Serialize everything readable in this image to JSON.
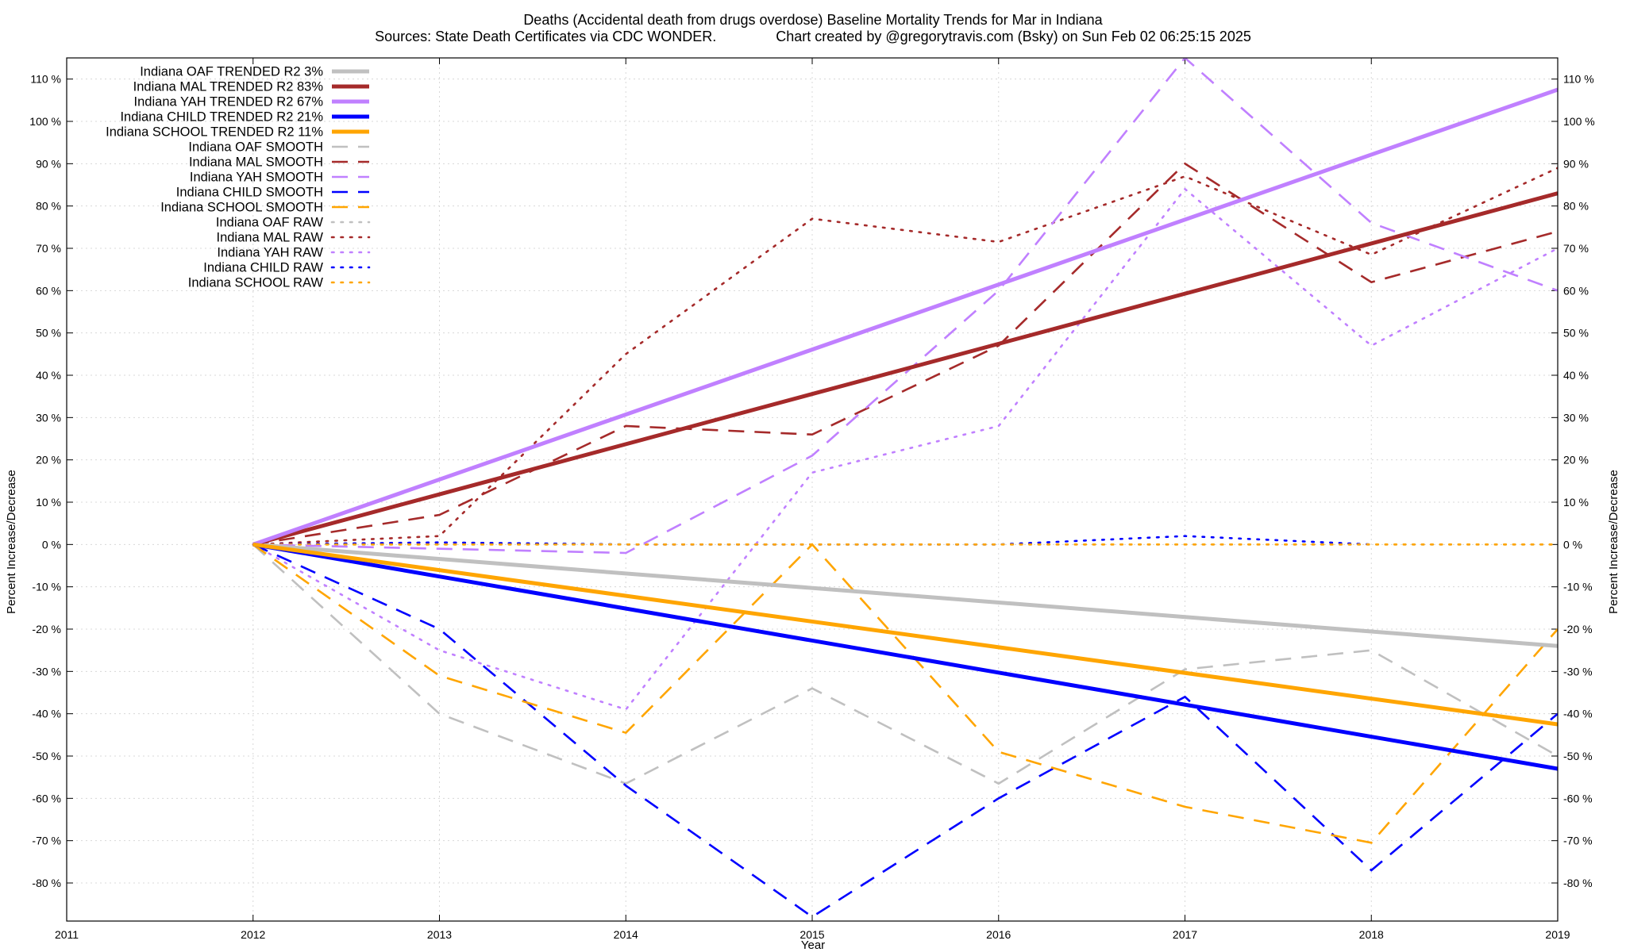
{
  "chart_data": {
    "type": "line",
    "title": "Deaths (Accidental death from drugs overdose)  Baseline Mortality Trends for Mar in Indiana",
    "subtitle": "Sources: State Death Certificates via CDC WONDER.               Chart created by @gregorytravis.com (Bsky) on Sun Feb 02 06:25:15 2025",
    "xlabel": "Year",
    "ylabel": "Percent Increase/Decrease",
    "ylabel_right": "Percent Increase/Decrease",
    "xlim": [
      2011,
      2019
    ],
    "ylim": [
      -89,
      115
    ],
    "x_ticks": [
      "2011",
      "2012",
      "2013",
      "2014",
      "2015",
      "2016",
      "2017",
      "2018",
      "2019"
    ],
    "y_ticks": [
      -80,
      -70,
      -60,
      -50,
      -40,
      -30,
      -20,
      -10,
      0,
      10,
      20,
      30,
      40,
      50,
      60,
      70,
      80,
      90,
      100,
      110
    ],
    "y_tick_labels": [
      "-80 %",
      "-70 %",
      "-60 %",
      "-50 %",
      "-40 %",
      "-30 %",
      "-20 %",
      "-10 %",
      "0 %",
      "10 %",
      "20 %",
      "30 %",
      "40 %",
      "50 %",
      "60 %",
      "70 %",
      "80 %",
      "90 %",
      "100 %",
      "110 %"
    ],
    "grid": true,
    "legend_position": "top-left",
    "series": [
      {
        "name": "Indiana OAF TRENDED R2  3%",
        "style": "solid",
        "color": "#c0c0c0",
        "x": [
          2012,
          2019
        ],
        "values": [
          0,
          -24
        ]
      },
      {
        "name": "Indiana MAL TRENDED R2  83%",
        "style": "solid",
        "color": "#a52a2a",
        "x": [
          2012,
          2019
        ],
        "values": [
          0,
          83
        ]
      },
      {
        "name": "Indiana YAH TRENDED R2  67%",
        "style": "solid",
        "color": "#c080ff",
        "x": [
          2012,
          2019
        ],
        "values": [
          0,
          107.5
        ]
      },
      {
        "name": "Indiana CHILD TRENDED R2  21%",
        "style": "solid",
        "color": "#0000ff",
        "x": [
          2012,
          2019
        ],
        "values": [
          0,
          -53
        ]
      },
      {
        "name": "Indiana SCHOOL TRENDED R2  11%",
        "style": "solid",
        "color": "#ffa500",
        "x": [
          2012,
          2019
        ],
        "values": [
          0,
          -42.5
        ]
      },
      {
        "name": "Indiana OAF SMOOTH",
        "style": "dash",
        "color": "#c0c0c0",
        "x": [
          2012,
          2013,
          2014,
          2015,
          2016,
          2017,
          2018,
          2019
        ],
        "values": [
          0,
          -40,
          -56.5,
          -34,
          -56.5,
          -29.5,
          -25,
          -50
        ]
      },
      {
        "name": "Indiana MAL SMOOTH",
        "style": "dash",
        "color": "#a52a2a",
        "x": [
          2012,
          2013,
          2014,
          2015,
          2016,
          2017,
          2018,
          2019
        ],
        "values": [
          0,
          7,
          28,
          26,
          47,
          90,
          62,
          74
        ]
      },
      {
        "name": "Indiana YAH SMOOTH",
        "style": "dash",
        "color": "#c080ff",
        "x": [
          2012,
          2013,
          2014,
          2015,
          2016,
          2017,
          2018,
          2019
        ],
        "values": [
          0,
          -1,
          -2,
          21,
          60,
          115,
          76,
          60
        ]
      },
      {
        "name": "Indiana CHILD SMOOTH",
        "style": "dash",
        "color": "#0000ff",
        "x": [
          2012,
          2013,
          2014,
          2015,
          2016,
          2017,
          2018,
          2019
        ],
        "values": [
          0,
          -20,
          -57,
          -88,
          -60,
          -36,
          -77,
          -40
        ]
      },
      {
        "name": "Indiana SCHOOL SMOOTH",
        "style": "dash",
        "color": "#ffa500",
        "x": [
          2012,
          2013,
          2014,
          2015,
          2016,
          2017,
          2018,
          2019
        ],
        "values": [
          0,
          -31,
          -44.5,
          0,
          -49,
          -62,
          -70.5,
          -20
        ]
      },
      {
        "name": "Indiana OAF RAW",
        "style": "dot",
        "color": "#c0c0c0",
        "x": [
          2012,
          2013,
          2014,
          2015,
          2016,
          2017,
          2018,
          2019
        ],
        "values": [
          0,
          0,
          0,
          0,
          0,
          0,
          0,
          0
        ]
      },
      {
        "name": "Indiana MAL RAW",
        "style": "dot",
        "color": "#a52a2a",
        "x": [
          2012,
          2013,
          2014,
          2015,
          2016,
          2017,
          2018,
          2019
        ],
        "values": [
          0,
          2,
          45,
          77,
          71.5,
          87,
          68.5,
          89
        ]
      },
      {
        "name": "Indiana YAH RAW",
        "style": "dot",
        "color": "#c080ff",
        "x": [
          2012,
          2013,
          2014,
          2015,
          2016,
          2017,
          2018,
          2019
        ],
        "values": [
          0,
          -25,
          -39,
          17,
          28,
          84,
          47,
          70
        ]
      },
      {
        "name": "Indiana CHILD RAW",
        "style": "dot",
        "color": "#0000ff",
        "x": [
          2012,
          2013,
          2014,
          2015,
          2016,
          2017,
          2018
        ],
        "values": [
          0,
          0.5,
          0,
          0,
          0,
          2,
          0
        ]
      },
      {
        "name": "Indiana SCHOOL RAW",
        "style": "dot",
        "color": "#ffa500",
        "x": [
          2012,
          2013,
          2014,
          2015,
          2016,
          2017,
          2018,
          2019
        ],
        "values": [
          0,
          0,
          0,
          0,
          0,
          0,
          0,
          0
        ]
      }
    ]
  }
}
